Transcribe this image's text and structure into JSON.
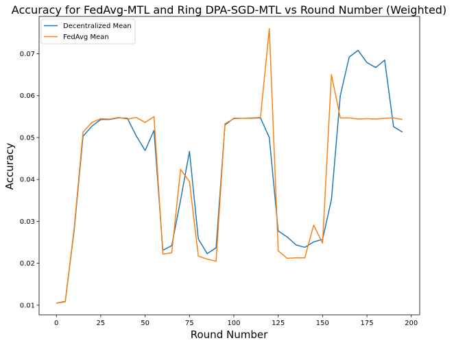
{
  "chart_data": {
    "type": "line",
    "title": "Accuracy for FedAvg-MTL and Ring DPA-SGD-MTL vs Round Number (Weighted)",
    "xlabel": "Round Number",
    "ylabel": "Accuracy",
    "xlim": [
      -9.75,
      204.75
    ],
    "ylim": [
      0.0077,
      0.0789
    ],
    "xticks": [
      0,
      25,
      50,
      75,
      100,
      125,
      150,
      175,
      200
    ],
    "yticks": [
      0.01,
      0.02,
      0.03,
      0.04,
      0.05,
      0.06,
      0.07
    ],
    "ytick_labels": [
      "0.01",
      "0.02",
      "0.03",
      "0.04",
      "0.05",
      "0.06",
      "0.07"
    ],
    "grid": false,
    "legend_position": "upper-left",
    "x": [
      0,
      5,
      10,
      15,
      20,
      25,
      30,
      35,
      40,
      45,
      50,
      55,
      60,
      65,
      70,
      75,
      80,
      85,
      90,
      95,
      100,
      105,
      110,
      115,
      120,
      125,
      130,
      135,
      140,
      145,
      150,
      155,
      160,
      165,
      170,
      175,
      180,
      185,
      190,
      195
    ],
    "series": [
      {
        "name": "Decentralized Mean",
        "color": "#1f77b4",
        "values": [
          0.0105,
          0.0109,
          0.0278,
          0.0503,
          0.0527,
          0.0543,
          0.0543,
          0.0547,
          0.0546,
          0.0504,
          0.0469,
          0.0517,
          0.0231,
          0.0242,
          0.0351,
          0.0467,
          0.0258,
          0.0223,
          0.0237,
          0.053,
          0.0546,
          0.0546,
          0.0546,
          0.0547,
          0.05,
          0.0277,
          0.0263,
          0.0244,
          0.0238,
          0.0251,
          0.0257,
          0.0352,
          0.06,
          0.0692,
          0.0708,
          0.0679,
          0.0667,
          0.0685,
          0.0526,
          0.0513
        ]
      },
      {
        "name": "FedAvg Mean",
        "color": "#ff7f0e",
        "values": [
          0.0105,
          0.0108,
          0.0283,
          0.0513,
          0.0536,
          0.0545,
          0.0544,
          0.0548,
          0.0544,
          0.0548,
          0.0536,
          0.055,
          0.0222,
          0.0225,
          0.0424,
          0.0395,
          0.0217,
          0.021,
          0.0205,
          0.0533,
          0.0545,
          0.0546,
          0.0547,
          0.0548,
          0.076,
          0.023,
          0.0212,
          0.0213,
          0.0213,
          0.0291,
          0.0248,
          0.065,
          0.0547,
          0.0547,
          0.0544,
          0.0545,
          0.0544,
          0.0546,
          0.0547,
          0.0543
        ]
      }
    ]
  }
}
